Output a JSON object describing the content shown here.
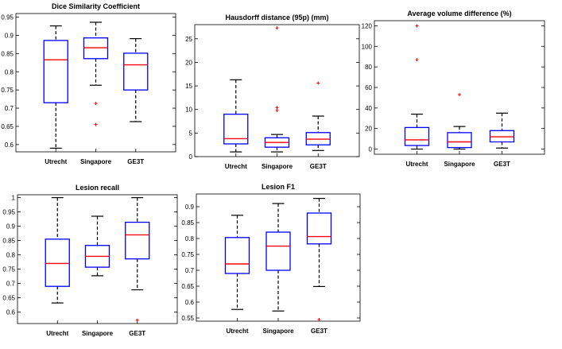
{
  "chart_data": [
    {
      "type": "box",
      "title": "Dice Similarity Coefficient",
      "categories": [
        "Utrecht",
        "Singapore",
        "GE3T"
      ],
      "ylim": [
        0.58,
        0.96
      ],
      "yticks": [
        "0.6",
        "0.65",
        "0.7",
        "0.75",
        "0.8",
        "0.85",
        "0.9",
        "0.95"
      ],
      "boxes": [
        {
          "min": 0.59,
          "q1": 0.715,
          "median": 0.833,
          "q3": 0.886,
          "max": 0.926,
          "outliers": []
        },
        {
          "min": 0.763,
          "q1": 0.836,
          "median": 0.866,
          "q3": 0.893,
          "max": 0.936,
          "outliers": [
            0.713,
            0.655
          ]
        },
        {
          "min": 0.663,
          "q1": 0.75,
          "median": 0.819,
          "q3": 0.851,
          "max": 0.891,
          "outliers": []
        }
      ]
    },
    {
      "type": "box",
      "title": "Hausdorff distance (95p) (mm)",
      "categories": [
        "Utrecht",
        "Singapore",
        "GE3T"
      ],
      "ylim": [
        0,
        28
      ],
      "yticks": [
        "0",
        "5",
        "10",
        "15",
        "20",
        "25"
      ],
      "boxes": [
        {
          "min": 1.0,
          "q1": 2.7,
          "median": 3.8,
          "q3": 9.0,
          "max": 16.3,
          "outliers": []
        },
        {
          "min": 1.0,
          "q1": 2.0,
          "median": 3.0,
          "q3": 4.0,
          "max": 4.7,
          "outliers": [
            27.3,
            10.4,
            9.8
          ]
        },
        {
          "min": 1.3,
          "q1": 2.5,
          "median": 3.7,
          "q3": 5.1,
          "max": 8.6,
          "outliers": [
            15.6
          ]
        }
      ]
    },
    {
      "type": "box",
      "title": "Average volume difference  (%)",
      "categories": [
        "Utrecht",
        "Singapore",
        "GE3T"
      ],
      "ylim": [
        -5,
        125
      ],
      "yticks": [
        "0",
        "20",
        "40",
        "60",
        "80",
        "100",
        "120"
      ],
      "boxes": [
        {
          "min": 0,
          "q1": 3.5,
          "median": 9,
          "q3": 21,
          "max": 34,
          "outliers": [
            120,
            87
          ]
        },
        {
          "min": 0,
          "q1": 1.5,
          "median": 7,
          "q3": 16,
          "max": 22,
          "outliers": [
            53
          ]
        },
        {
          "min": 1,
          "q1": 7,
          "median": 12,
          "q3": 18,
          "max": 35,
          "outliers": []
        }
      ]
    },
    {
      "type": "box",
      "title": "Lesion recall",
      "categories": [
        "Utrecht",
        "Singapore",
        "GE3T"
      ],
      "ylim": [
        0.56,
        1.01
      ],
      "yticks": [
        "0.6",
        "0.65",
        "0.7",
        "0.75",
        "0.8",
        "0.85",
        "0.9",
        "0.95",
        "1"
      ],
      "boxes": [
        {
          "min": 0.632,
          "q1": 0.69,
          "median": 0.77,
          "q3": 0.855,
          "max": 1.0,
          "outliers": []
        },
        {
          "min": 0.727,
          "q1": 0.757,
          "median": 0.795,
          "q3": 0.833,
          "max": 0.935,
          "outliers": []
        },
        {
          "min": 0.678,
          "q1": 0.786,
          "median": 0.87,
          "q3": 0.914,
          "max": 1.0,
          "outliers": [
            0.572
          ]
        }
      ]
    },
    {
      "type": "box",
      "title": "Lesion F1",
      "categories": [
        "Utrecht",
        "Singapore",
        "GE3T"
      ],
      "ylim": [
        0.54,
        0.94
      ],
      "yticks": [
        "0.55",
        "0.6",
        "0.65",
        "0.7",
        "0.75",
        "0.8",
        "0.85",
        "0.9"
      ],
      "boxes": [
        {
          "min": 0.577,
          "q1": 0.69,
          "median": 0.72,
          "q3": 0.803,
          "max": 0.873,
          "outliers": []
        },
        {
          "min": 0.572,
          "q1": 0.7,
          "median": 0.776,
          "q3": 0.82,
          "max": 0.91,
          "outliers": []
        },
        {
          "min": 0.649,
          "q1": 0.783,
          "median": 0.806,
          "q3": 0.88,
          "max": 0.926,
          "outliers": [
            0.545
          ]
        }
      ]
    }
  ],
  "colors": {
    "box": "#0000ff",
    "median": "#ff0000",
    "outlier": "#ff0000",
    "whisker": "#000000"
  }
}
